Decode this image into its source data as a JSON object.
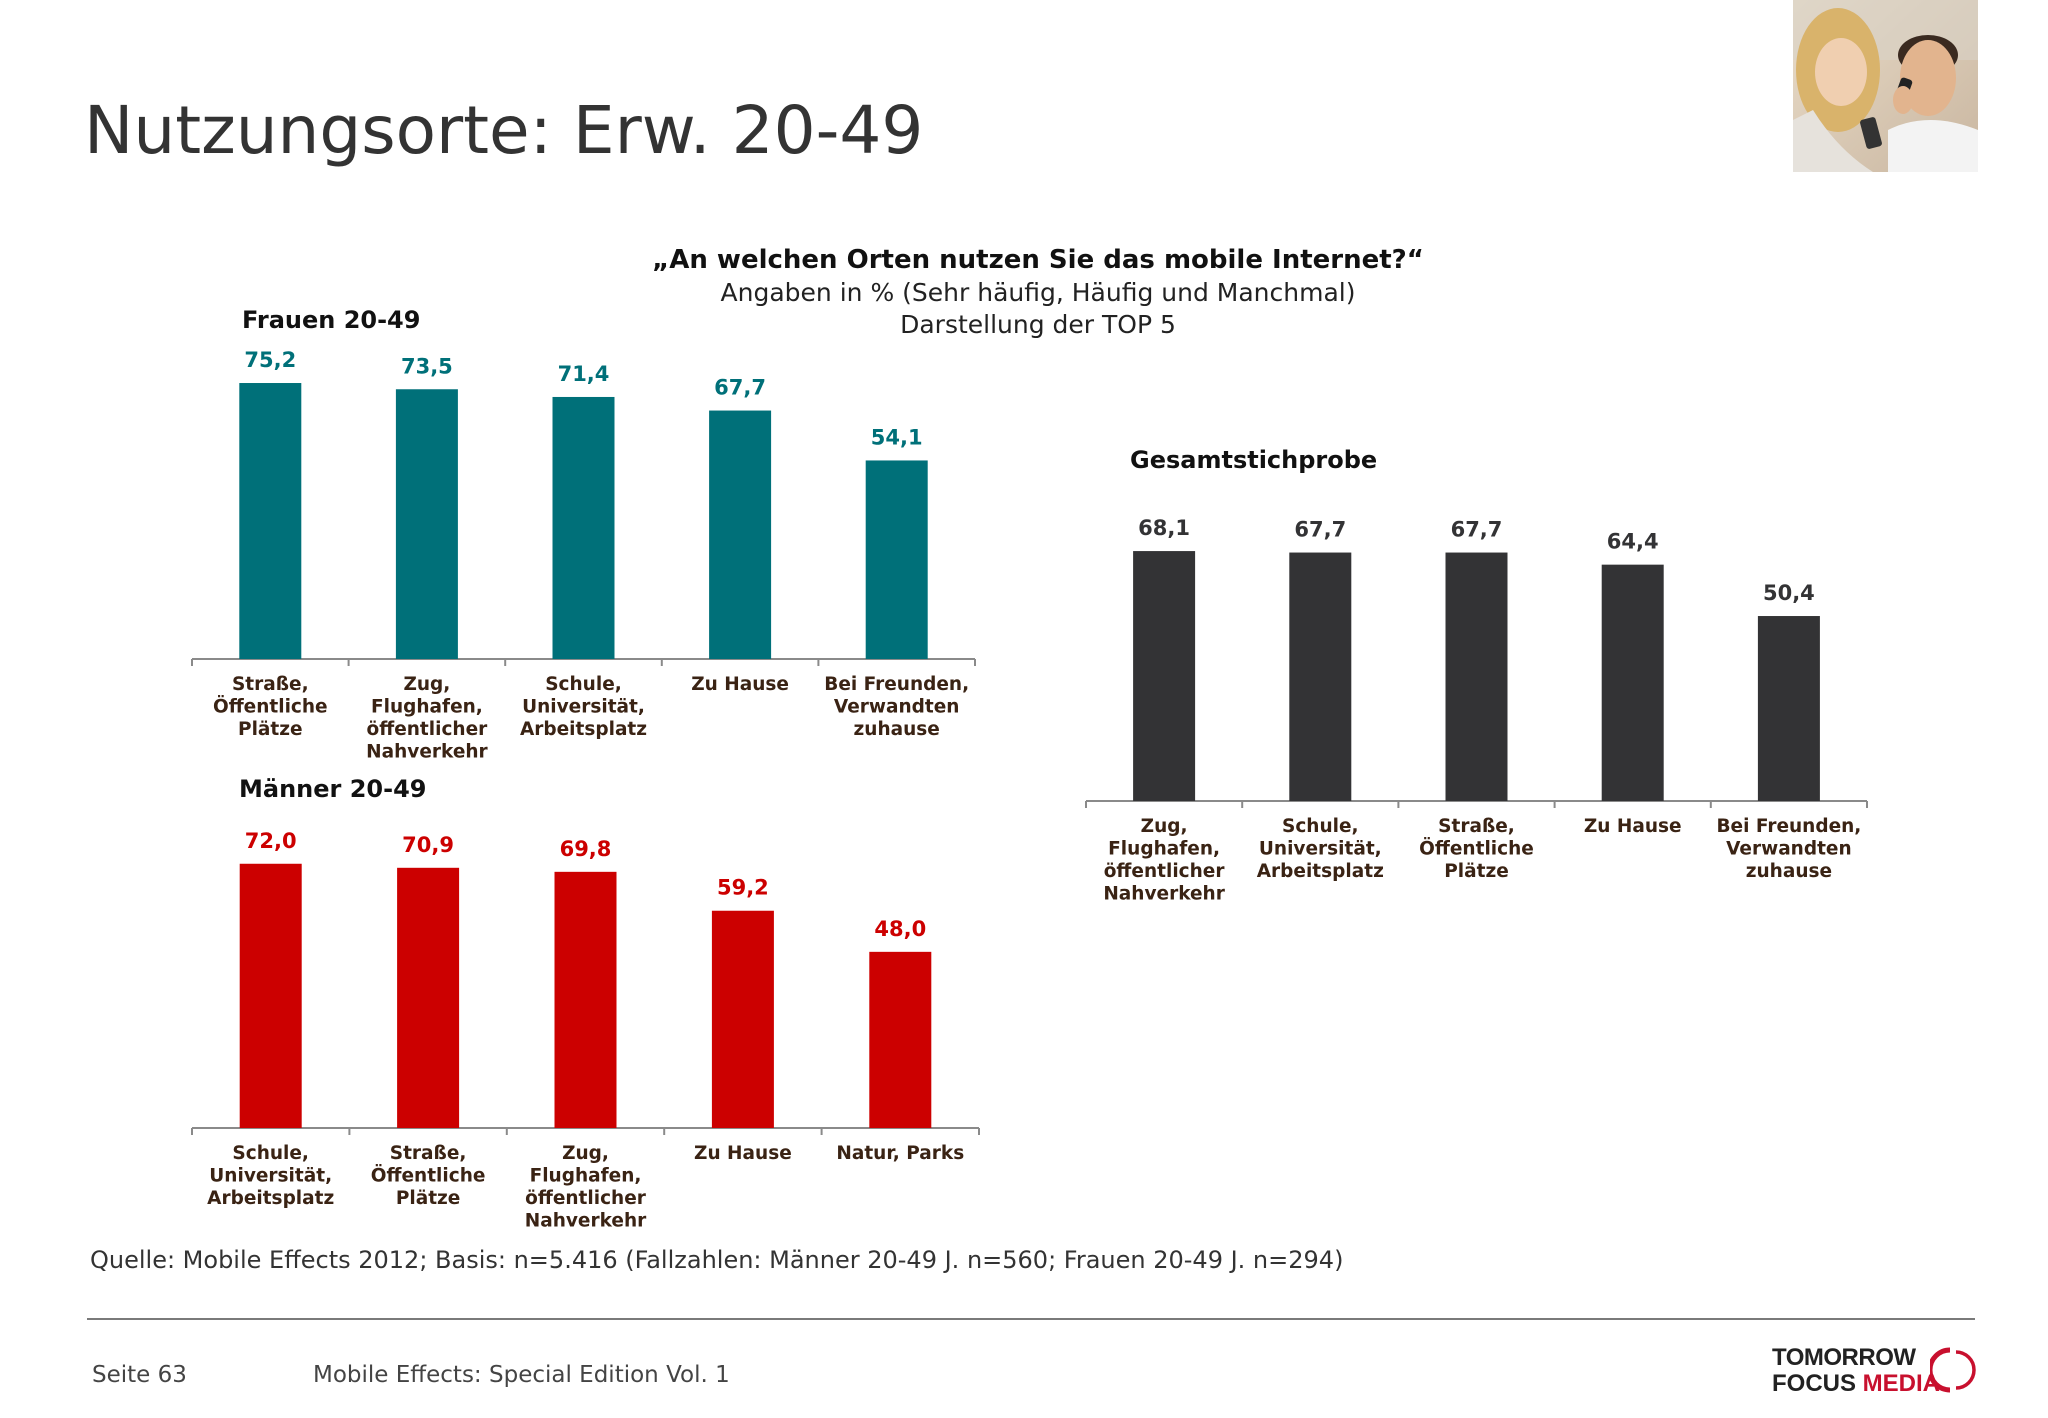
{
  "title": "Nutzungsorte: Erw. 20-49",
  "question": {
    "line1": "„An welchen Orten nutzen Sie das mobile Internet?“",
    "line2": "Angaben in % (Sehr häufig, Häufig und Manchmal)",
    "line3": "Darstellung der TOP 5"
  },
  "colors": {
    "frauen": "#007079",
    "maenner": "#cc0000",
    "gesamt": "#333335",
    "category_text": "#3a2314"
  },
  "chart_data": [
    {
      "type": "bar",
      "id": "frauen",
      "title": "Frauen 20-49",
      "categories": [
        [
          "Straße,",
          "Öffentliche",
          "Plätze"
        ],
        [
          "Zug,",
          "Flughafen,",
          "öffentlicher",
          "Nahverkehr"
        ],
        [
          "Schule,",
          "Universität,",
          "Arbeitsplatz"
        ],
        [
          "Zu Hause"
        ],
        [
          "Bei Freunden,",
          "Verwandten",
          "zuhause"
        ]
      ],
      "values": [
        75.2,
        73.5,
        71.4,
        67.7,
        54.1
      ],
      "value_labels": [
        "75,2",
        "73,5",
        "71,4",
        "67,7",
        "54,1"
      ],
      "ylim": [
        0,
        80
      ]
    },
    {
      "type": "bar",
      "id": "maenner",
      "title": "Männer 20-49",
      "categories": [
        [
          "Schule,",
          "Universität,",
          "Arbeitsplatz"
        ],
        [
          "Straße,",
          "Öffentliche",
          "Plätze"
        ],
        [
          "Zug,",
          "Flughafen,",
          "öffentlicher",
          "Nahverkehr"
        ],
        [
          "Zu Hause"
        ],
        [
          "Natur, Parks"
        ]
      ],
      "values": [
        72.0,
        70.9,
        69.8,
        59.2,
        48.0
      ],
      "value_labels": [
        "72,0",
        "70,9",
        "69,8",
        "59,2",
        "48,0"
      ],
      "ylim": [
        0,
        80
      ]
    },
    {
      "type": "bar",
      "id": "gesamt",
      "title": "Gesamtstichprobe",
      "categories": [
        [
          "Zug,",
          "Flughafen,",
          "öffentlicher",
          "Nahverkehr"
        ],
        [
          "Schule,",
          "Universität,",
          "Arbeitsplatz"
        ],
        [
          "Straße,",
          "Öffentliche",
          "Plätze"
        ],
        [
          "Zu Hause"
        ],
        [
          "Bei Freunden,",
          "Verwandten",
          "zuhause"
        ]
      ],
      "values": [
        68.1,
        67.7,
        67.7,
        64.4,
        50.4
      ],
      "value_labels": [
        "68,1",
        "67,7",
        "67,7",
        "64,4",
        "50,4"
      ],
      "ylim": [
        0,
        80
      ]
    }
  ],
  "source": "Quelle: Mobile Effects 2012; Basis: n=5.416 (Fallzahlen: Männer 20-49 J. n=560; Frauen 20-49 J. n=294)",
  "footer": {
    "page": "Seite 63",
    "publication": "Mobile Effects: Special Edition Vol. 1"
  },
  "logo": {
    "line1": "TOMORROW",
    "line2a": "FOCUS",
    "line2b": "MEDIA"
  }
}
